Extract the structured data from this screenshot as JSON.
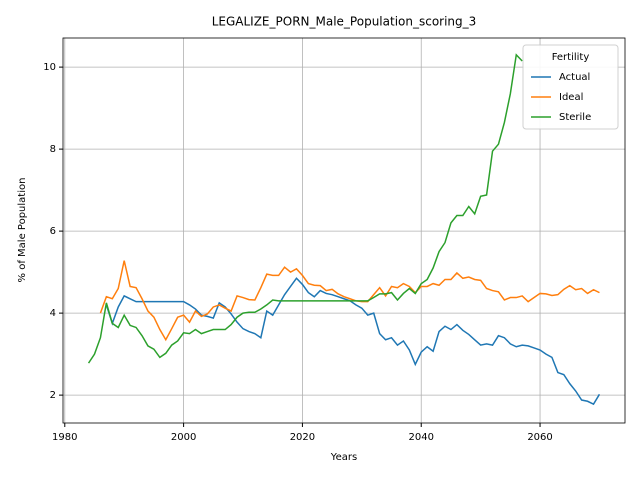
{
  "chart_data": {
    "type": "line",
    "title": "LEGALIZE_PORN_Male_Population_scoring_3",
    "xlabel": "Years",
    "ylabel": "% of Male Population",
    "legend_title": "Fertility",
    "legend": "upper right",
    "grid": true,
    "xlim": [
      1979.7,
      2074.3
    ],
    "ylim": [
      1.32,
      10.71
    ],
    "xticks": [
      1980,
      2000,
      2020,
      2040,
      2060
    ],
    "yticks": [
      2,
      4,
      6,
      8,
      10
    ],
    "x": [
      1984,
      1985,
      1986,
      1987,
      1988,
      1989,
      1990,
      1991,
      1992,
      1993,
      1994,
      1995,
      1996,
      1997,
      1998,
      1999,
      2000,
      2001,
      2002,
      2003,
      2004,
      2005,
      2006,
      2007,
      2008,
      2009,
      2010,
      2011,
      2012,
      2013,
      2014,
      2015,
      2016,
      2017,
      2018,
      2019,
      2020,
      2021,
      2022,
      2023,
      2024,
      2025,
      2026,
      2027,
      2028,
      2029,
      2030,
      2031,
      2032,
      2033,
      2034,
      2035,
      2036,
      2037,
      2038,
      2039,
      2040,
      2041,
      2042,
      2043,
      2044,
      2045,
      2046,
      2047,
      2048,
      2049,
      2050,
      2051,
      2052,
      2053,
      2054,
      2055,
      2056,
      2057,
      2058,
      2059,
      2060,
      2061,
      2062,
      2063,
      2064,
      2065,
      2066,
      2067,
      2068,
      2069,
      2070
    ],
    "series": [
      {
        "name": "Actual",
        "color": "#1f77b4",
        "values": [
          null,
          null,
          null,
          4.2,
          3.75,
          4.15,
          4.42,
          4.35,
          4.28,
          4.28,
          4.28,
          4.28,
          4.28,
          4.28,
          4.28,
          4.28,
          4.28,
          4.2,
          4.1,
          3.95,
          3.92,
          3.88,
          4.25,
          4.15,
          3.98,
          3.78,
          3.62,
          3.55,
          3.5,
          3.4,
          4.05,
          3.95,
          4.2,
          4.45,
          4.65,
          4.85,
          4.7,
          4.5,
          4.4,
          4.55,
          4.48,
          4.45,
          4.4,
          4.35,
          4.3,
          4.2,
          4.12,
          3.95,
          4.0,
          3.5,
          3.35,
          3.4,
          3.22,
          3.32,
          3.1,
          2.75,
          3.05,
          3.18,
          3.07,
          3.55,
          3.68,
          3.6,
          3.72,
          3.58,
          3.48,
          3.35,
          3.22,
          3.25,
          3.22,
          3.45,
          3.4,
          3.25,
          3.18,
          3.22,
          3.2,
          3.15,
          3.1,
          3.0,
          2.92,
          2.55,
          2.5,
          2.28,
          2.1,
          1.88,
          1.85,
          1.78,
          2.02
        ]
      },
      {
        "name": "Ideal",
        "color": "#ff7f0e",
        "values": [
          null,
          null,
          4.0,
          4.4,
          4.35,
          4.6,
          5.28,
          4.65,
          4.62,
          4.35,
          4.05,
          3.9,
          3.6,
          3.35,
          3.62,
          3.9,
          3.95,
          3.78,
          4.05,
          3.92,
          3.98,
          4.15,
          4.2,
          4.12,
          4.05,
          4.42,
          4.38,
          4.33,
          4.32,
          4.62,
          4.95,
          4.92,
          4.92,
          5.12,
          5.0,
          5.08,
          4.92,
          4.72,
          4.68,
          4.67,
          4.55,
          4.58,
          4.47,
          4.4,
          4.35,
          4.3,
          4.28,
          4.28,
          4.45,
          4.62,
          4.42,
          4.65,
          4.62,
          4.72,
          4.65,
          4.5,
          4.65,
          4.65,
          4.72,
          4.68,
          4.82,
          4.82,
          4.98,
          4.85,
          4.88,
          4.82,
          4.8,
          4.6,
          4.55,
          4.52,
          4.32,
          4.38,
          4.38,
          4.42,
          4.28,
          4.38,
          4.48,
          4.47,
          4.43,
          4.45,
          4.58,
          4.67,
          4.57,
          4.6,
          4.48,
          4.57,
          4.5
        ]
      },
      {
        "name": "Sterile",
        "color": "#2ca02c",
        "values": [
          2.78,
          3.0,
          3.4,
          4.25,
          3.75,
          3.65,
          3.95,
          3.7,
          3.65,
          3.45,
          3.2,
          3.12,
          2.92,
          3.02,
          3.22,
          3.32,
          3.52,
          3.5,
          3.6,
          3.5,
          3.55,
          3.6,
          3.6,
          3.6,
          3.72,
          3.9,
          4.0,
          4.02,
          4.02,
          4.1,
          4.2,
          4.32,
          4.3,
          4.3,
          4.3,
          4.3,
          4.3,
          4.3,
          4.3,
          4.3,
          4.3,
          4.3,
          4.3,
          4.3,
          4.3,
          4.3,
          4.3,
          4.3,
          4.38,
          4.47,
          4.47,
          4.5,
          4.32,
          4.48,
          4.6,
          4.48,
          4.72,
          4.82,
          5.1,
          5.5,
          5.72,
          6.2,
          6.38,
          6.38,
          6.6,
          6.42,
          6.85,
          6.88,
          7.95,
          8.12,
          8.65,
          9.35,
          10.3,
          10.15,
          null,
          null,
          null,
          null,
          null,
          null,
          null,
          null,
          null,
          null,
          null,
          null,
          null
        ]
      }
    ]
  }
}
